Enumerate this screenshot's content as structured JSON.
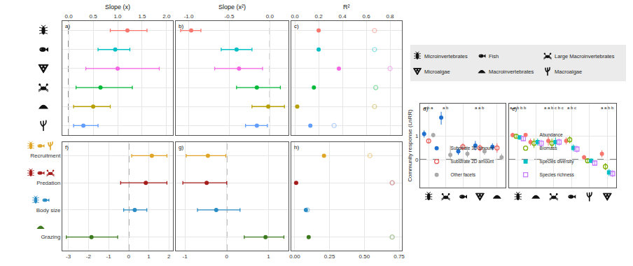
{
  "chart_data": [
    {
      "type": "dot_whisker",
      "panel": "a)",
      "title": "Slope (x)",
      "categories": [
        "Microinvertebrates",
        "Fish",
        "Microalgae",
        "Large Macroinvertebrates",
        "Macroinvertebrates",
        "Macroalgae"
      ],
      "values": [
        1.2,
        0.95,
        1.0,
        0.65,
        0.5,
        0.3
      ],
      "ci_low": [
        0.85,
        0.6,
        0.35,
        0.15,
        0.1,
        0.1
      ],
      "ci_high": [
        1.6,
        1.25,
        1.85,
        1.3,
        0.85,
        0.6
      ],
      "colors": [
        "#F8766D",
        "#00BFC4",
        "#F564E3",
        "#00BA38",
        "#B79F00",
        "#619CFF"
      ],
      "xlim": [
        -0.13,
        2.13
      ],
      "xticks": [
        {
          "value": 0,
          "label": "0.0"
        },
        0.5,
        {
          "value": 1,
          "label": "1.0"
        },
        1.5,
        {
          "value": 2,
          "label": "2.0"
        }
      ],
      "ref_line": 0,
      "grid": true,
      "tick_labels": "x"
    },
    {
      "type": "dot_whisker",
      "panel": "b)",
      "title": "Slope (x²)",
      "categories": [
        "Microinvertebrates",
        "Fish",
        "Microalgae",
        "Large Macroinvertebrates",
        "Macroinvertebrates",
        "Macroalgae"
      ],
      "values": [
        -0.97,
        -0.41,
        -0.38,
        -0.16,
        -0.02,
        -0.16
      ],
      "ci_low": [
        -1.1,
        -0.6,
        -0.68,
        -0.41,
        -0.22,
        -0.3
      ],
      "ci_high": [
        -0.85,
        -0.22,
        -0.09,
        0.13,
        0.18,
        -0.03
      ],
      "colors": [
        "#F8766D",
        "#00BFC4",
        "#F564E3",
        "#00BA38",
        "#B79F00",
        "#619CFF"
      ],
      "xlim": [
        -1.16,
        0.23
      ],
      "xticks": [
        {
          "value": -1,
          "label": "-1.0"
        },
        -0.5,
        {
          "value": 0,
          "label": "0.0"
        }
      ],
      "ref_line": 0,
      "grid": true,
      "tick_labels": "x"
    },
    {
      "type": "dot",
      "panel": "c)",
      "title": "R²",
      "categories": [
        "Microinvertebrates",
        "Fish",
        "Microalgae",
        "Large Macroinvertebrates",
        "Macroinvertebrates",
        "Macroalgae"
      ],
      "series": [
        {
          "marker": "circle",
          "values": [
            0.2,
            0.2,
            0.37,
            0.16,
            0.02,
            0.13
          ]
        },
        {
          "marker": "circle-open",
          "values": [
            0.67,
            0.67,
            0.8,
            0.68,
            0.67,
            0.33
          ]
        }
      ],
      "colors": [
        "#F8766D",
        "#00BFC4",
        "#F564E3",
        "#00BA38",
        "#B79F00",
        "#619CFF"
      ],
      "xlim": [
        -0.03,
        0.9
      ],
      "xticks": [
        {
          "value": 0,
          "label": "0.0"
        },
        0.2,
        0.4,
        0.6,
        0.8
      ],
      "grid": true,
      "tick_labels": "x"
    },
    {
      "type": "dot_whisker",
      "panel": "f)",
      "categories": [
        "Recruitment",
        "Predation",
        "Body size",
        "Grazing"
      ],
      "values": [
        1.15,
        0.85,
        0.3,
        -1.85
      ],
      "ci_low": [
        0.15,
        -0.4,
        -0.25,
        -3.1
      ],
      "ci_high": [
        1.9,
        1.9,
        0.9,
        -0.55
      ],
      "colors": [
        "#E0A526",
        "#A51C1C",
        "#2B8CC4",
        "#3D7A1F"
      ],
      "xlim": [
        -3.3,
        2.2
      ],
      "xticks": [
        -3,
        -2,
        -1,
        0,
        1,
        2
      ],
      "ref_line": 0,
      "grid": true
    },
    {
      "type": "dot_whisker",
      "panel": "g)",
      "categories": [
        "Recruitment",
        "Predation",
        "Body size",
        "Grazing"
      ],
      "values": [
        -0.45,
        -0.48,
        -0.25,
        0.93
      ],
      "ci_low": [
        -0.97,
        -1.05,
        -0.7,
        0.42
      ],
      "ci_high": [
        -0.02,
        0,
        0.32,
        1.37
      ],
      "colors": [
        "#E0A526",
        "#A51C1C",
        "#2B8CC4",
        "#3D7A1F"
      ],
      "xlim": [
        -1.22,
        1.48
      ],
      "xticks": [
        -1,
        0,
        1
      ],
      "ref_line": 0,
      "grid": true,
      "tick_labels": "x"
    },
    {
      "type": "dot",
      "panel": "h)",
      "categories": [
        "Recruitment",
        "Predation",
        "Body size",
        "Grazing"
      ],
      "series": [
        {
          "marker": "circle",
          "values": [
            0.21,
            0.01,
            0.08,
            0.1
          ]
        },
        {
          "marker": "circle-open",
          "values": [
            0.54,
            0.7,
            0.09,
            0.7
          ]
        }
      ],
      "colors": [
        "#E0A526",
        "#A51C1C",
        "#2B8CC4",
        "#3D7A1F"
      ],
      "xlim": [
        -0.025,
        0.77
      ],
      "xticks": [
        {
          "value": 0,
          "label": "0.00"
        },
        0.25,
        {
          "value": 0.5,
          "label": "0.50"
        },
        0.75
      ],
      "grid": true,
      "tick_labels": "x"
    },
    {
      "type": "scatter",
      "panel": "d)",
      "ylabel": "Community response (LnRR)",
      "categories": [
        "Microinvertebrates",
        "Large Macroinvertebrates",
        "Fish",
        "Microalgae",
        "Macroinvertebrates"
      ],
      "series": [
        {
          "name": "Substrate 3D amount",
          "color": "#1F6FD0",
          "marker": "circle",
          "values": [
            1.1,
            1.8,
            0.35,
            0.6,
            0.55
          ],
          "ci_low": [
            0.95,
            1.5,
            0.2,
            0.4,
            0.4
          ],
          "ci_high": [
            1.25,
            2.05,
            0.5,
            0.8,
            0.7
          ]
        },
        {
          "name": "Substrate 2D amount",
          "color": "#E8635F",
          "marker": "circle-open",
          "values": [
            0.8,
            null,
            0.55,
            0.5,
            0.5
          ],
          "ci_low": [
            0.7,
            null,
            0.4,
            0.35,
            0.3
          ],
          "ci_high": [
            0.9,
            null,
            0.7,
            0.65,
            0.7
          ]
        },
        {
          "name": "Other facets",
          "color": "#AAAAAA",
          "marker": "circle",
          "values": [
            1.05,
            0.2,
            0.25,
            0.35,
            0.1
          ],
          "ci_low": [
            0.95,
            0.05,
            0.1,
            0.2,
            0.0
          ],
          "ci_high": [
            1.15,
            0.6,
            0.4,
            0.5,
            0.25
          ]
        }
      ],
      "letters": [
        "a b a",
        "a b",
        null,
        "a a b",
        null
      ],
      "ylim": [
        -1.2,
        2.4
      ],
      "yticks": [
        0,
        1
      ],
      "ref_line": 0,
      "grid": true,
      "legend": "bottom left",
      "tick_labels": "y"
    },
    {
      "type": "scatter",
      "panel": "e)",
      "categories": [
        "Microinvertebrates",
        "Macroinvertebrates",
        "Large Macroinvertebrates",
        "Fish",
        "Macroalgae",
        "Microalgae"
      ],
      "series": [
        {
          "name": "Abundance",
          "color": "#F8766D",
          "marker": "circle",
          "values": [
            1.05,
            0.75,
            0.8,
            0.8,
            0.1,
            0.25
          ],
          "ci_low": [
            0.95,
            0.6,
            0.6,
            0.65,
            0.0,
            0.1
          ],
          "ci_high": [
            1.15,
            0.9,
            1.0,
            0.95,
            0.2,
            0.4
          ]
        },
        {
          "name": "Biomass",
          "color": "#7CAE00",
          "marker": "circle-open",
          "values": [
            1.0,
            0.7,
            0.7,
            0.85,
            -0.05,
            -0.3
          ],
          "ci_low": [
            0.9,
            0.5,
            0.5,
            0.7,
            -0.15,
            -0.45
          ],
          "ci_high": [
            1.1,
            0.9,
            0.9,
            1.0,
            0.05,
            -0.15
          ]
        },
        {
          "name": "Species diversity",
          "color": "#00BFC4",
          "marker": "square",
          "values": [
            0.95,
            0.75,
            0.75,
            0.5,
            -0.05,
            -0.55
          ],
          "ci_low": [
            0.85,
            0.6,
            0.55,
            0.35,
            -0.15,
            -0.7
          ],
          "ci_high": [
            1.05,
            0.9,
            0.95,
            0.65,
            0.05,
            -0.4
          ]
        },
        {
          "name": "Species richness",
          "color": "#C77CFF",
          "marker": "square-open",
          "values": [
            0.9,
            0.7,
            0.75,
            0.45,
            -0.15,
            -0.6
          ],
          "ci_low": [
            0.8,
            0.55,
            0.6,
            0.3,
            -0.25,
            -0.75
          ],
          "ci_high": [
            1.0,
            0.85,
            0.9,
            0.6,
            -0.05,
            -0.45
          ]
        }
      ],
      "letters": [
        "a a b b b",
        null,
        "a a b c b c",
        "a b c",
        null,
        "a a b b"
      ],
      "ylim": [
        -1.2,
        2.4
      ],
      "yticks": [
        0,
        1
      ],
      "ref_line": 0,
      "grid": true,
      "legend": "bottom left",
      "tick_labels": false
    }
  ],
  "legend_box": [
    "Microinvertebrates",
    "Fish",
    "Large Macroinvertebrates",
    "Microalgae",
    "Macroinvertebrates",
    "Macroalgae"
  ]
}
